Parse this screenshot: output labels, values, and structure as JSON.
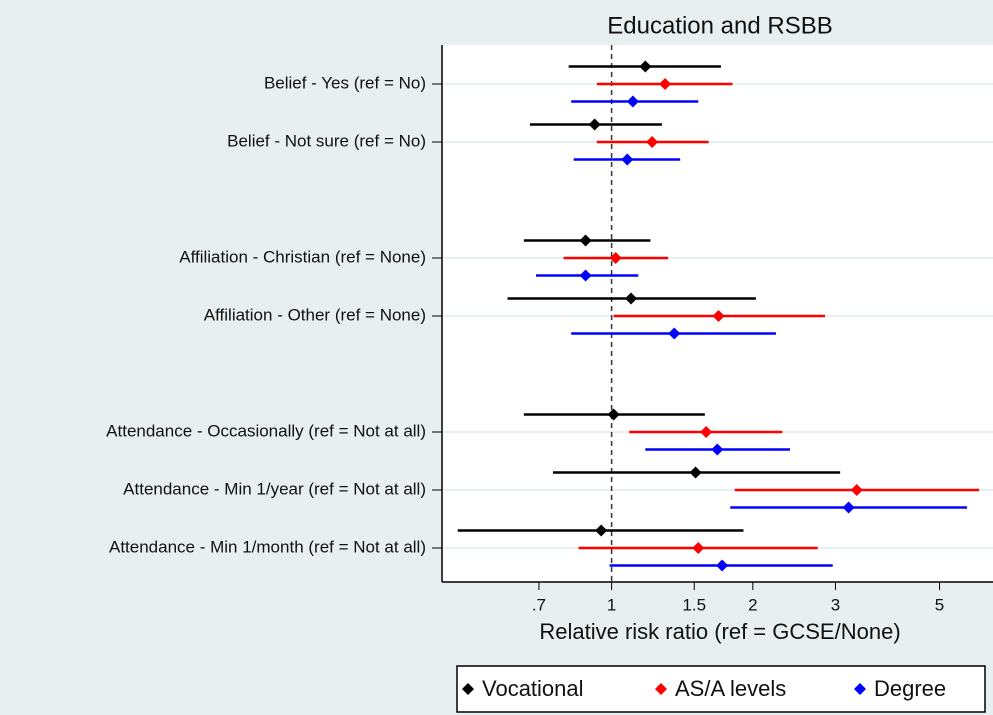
{
  "chart_data": {
    "type": "forest",
    "title": "Education and RSBB",
    "x_label": "Relative risk ratio (ref = GCSE/None)",
    "log_x": true,
    "grid": true,
    "reference_line": 1,
    "categories": [
      "Belief - Yes (ref = No)",
      "Belief - Not sure (ref = No)",
      null,
      "Affiliation - Christian (ref = None)",
      "Affiliation - Other (ref = None)",
      null,
      "Attendance - Occasionally (ref = Not at all)",
      "Attendance - Min 1/year (ref = Not at all)",
      "Attendance - Min 1/month (ref = Not at all)"
    ],
    "series": [
      {
        "name": "Vocational",
        "color": "#000000",
        "values": [
          1.18,
          0.92,
          null,
          0.88,
          1.1,
          null,
          1.01,
          1.51,
          0.95
        ],
        "lower": [
          0.81,
          0.67,
          null,
          0.65,
          0.6,
          null,
          0.65,
          0.75,
          0.47
        ],
        "upper": [
          1.71,
          1.28,
          null,
          1.21,
          2.03,
          null,
          1.58,
          3.07,
          1.91
        ]
      },
      {
        "name": "AS/A levels",
        "color": "#ff0000",
        "values": [
          1.3,
          1.22,
          null,
          1.02,
          1.69,
          null,
          1.59,
          3.33,
          1.53
        ],
        "lower": [
          0.93,
          0.93,
          null,
          0.79,
          1.01,
          null,
          1.09,
          1.83,
          0.85
        ],
        "upper": [
          1.81,
          1.61,
          null,
          1.32,
          2.85,
          null,
          2.31,
          6.07,
          2.75
        ]
      },
      {
        "name": "Degree",
        "color": "#0000ff",
        "values": [
          1.11,
          1.08,
          null,
          0.88,
          1.36,
          null,
          1.68,
          3.2,
          1.72
        ],
        "lower": [
          0.82,
          0.83,
          null,
          0.69,
          0.82,
          null,
          1.18,
          1.79,
          0.99
        ],
        "upper": [
          1.53,
          1.4,
          null,
          1.14,
          2.24,
          null,
          2.4,
          5.72,
          2.96
        ]
      }
    ],
    "xlim": [
      0.435,
      6.5
    ],
    "xticks": [
      {
        "value": 0.7,
        "label": ".7"
      },
      1,
      1.5,
      2,
      3,
      5
    ]
  }
}
